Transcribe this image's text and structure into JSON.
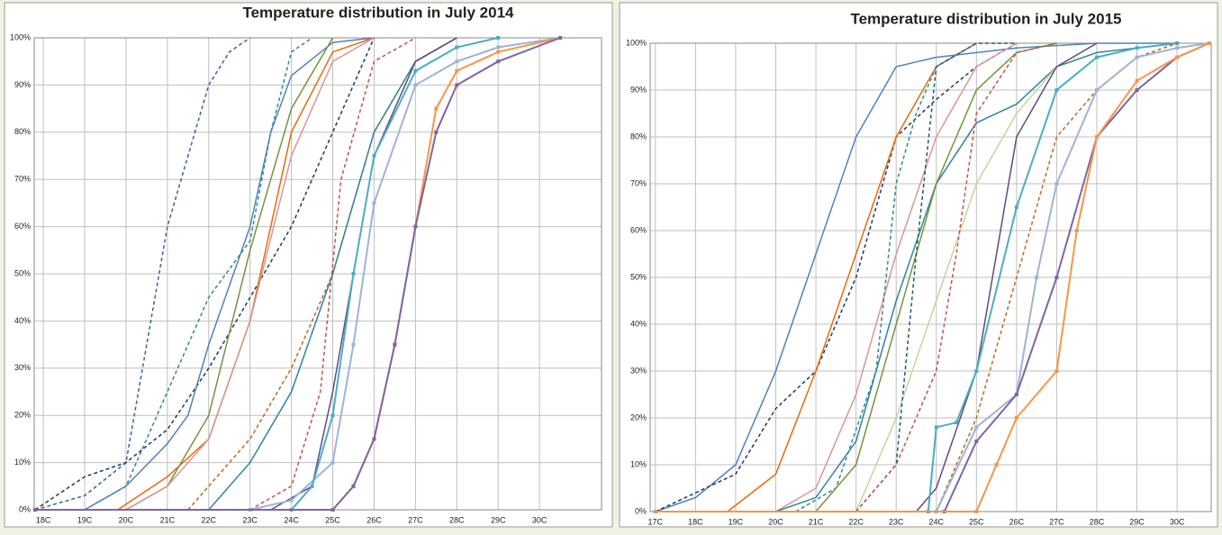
{
  "chart_data": [
    {
      "type": "line",
      "title": "Temperature distribution in July 2014",
      "xlim": [
        17.78,
        31.5
      ],
      "ylim": [
        0,
        100
      ],
      "grid": true,
      "xticks": [
        {
          "value": 18,
          "label": "18C"
        },
        {
          "value": 19,
          "label": "19C"
        },
        {
          "value": 20,
          "label": "20C"
        },
        {
          "value": 21,
          "label": "21C"
        },
        {
          "value": 22,
          "label": "22C"
        },
        {
          "value": 23,
          "label": "23C"
        },
        {
          "value": 24,
          "label": "24C"
        },
        {
          "value": 25,
          "label": "25C"
        },
        {
          "value": 26,
          "label": "26C"
        },
        {
          "value": 27,
          "label": "27C"
        },
        {
          "value": 28,
          "label": "28C"
        },
        {
          "value": 29,
          "label": "29C"
        },
        {
          "value": 30,
          "label": "30C"
        }
      ],
      "yticks": [
        {
          "value": 0,
          "label": "0%"
        },
        {
          "value": 10,
          "label": "10%"
        },
        {
          "value": 20,
          "label": "20%"
        },
        {
          "value": 30,
          "label": "30%"
        },
        {
          "value": 40,
          "label": "40%"
        },
        {
          "value": 50,
          "label": "50%"
        },
        {
          "value": 60,
          "label": "60%"
        },
        {
          "value": 70,
          "label": "70%"
        },
        {
          "value": 80,
          "label": "80%"
        },
        {
          "value": 90,
          "label": "90%"
        },
        {
          "value": 100,
          "label": "100%"
        }
      ],
      "series": [
        {
          "color": "#3a6594",
          "dashed": true,
          "x": [
            17.8,
            19,
            20,
            20.5,
            21,
            21.5,
            22,
            22.5,
            23
          ],
          "values": [
            0,
            3,
            10,
            35,
            60,
            75,
            90,
            97,
            100
          ]
        },
        {
          "color": "#31859c",
          "dashed": true,
          "x": [
            19,
            20,
            21,
            22,
            23,
            23.5,
            24,
            24.5
          ],
          "values": [
            0,
            5,
            25,
            45,
            57,
            80,
            97,
            100
          ]
        },
        {
          "color": "#1f3864",
          "dashed": true,
          "x": [
            17.8,
            19,
            20,
            21,
            22,
            23,
            24,
            25,
            26
          ],
          "values": [
            0,
            7,
            10,
            17,
            30,
            45,
            60,
            80,
            100
          ]
        },
        {
          "color": "#4f81bd",
          "dashed": false,
          "x": [
            19,
            20,
            21,
            21.5,
            22,
            23,
            23.5,
            24,
            25,
            26
          ],
          "values": [
            0,
            5,
            14,
            20,
            35,
            60,
            80,
            92,
            99,
            100
          ]
        },
        {
          "color": "#e46c0a",
          "dashed": false,
          "x": [
            19.8,
            21,
            22,
            23,
            24,
            25,
            26
          ],
          "values": [
            0,
            7,
            15,
            40,
            80,
            97,
            100
          ]
        },
        {
          "color": "#77933c",
          "dashed": false,
          "x": [
            20,
            21,
            22,
            23,
            24,
            25
          ],
          "values": [
            0,
            5,
            20,
            55,
            85,
            100
          ]
        },
        {
          "color": "#d99694",
          "dashed": false,
          "x": [
            20,
            21,
            22,
            23,
            24,
            25,
            26
          ],
          "values": [
            0,
            5,
            15,
            40,
            75,
            95,
            100
          ]
        },
        {
          "color": "#c0661e",
          "dashed": true,
          "x": [
            21.5,
            23,
            24,
            25,
            26,
            27,
            28
          ],
          "values": [
            0,
            15,
            30,
            50,
            80,
            95,
            100
          ]
        },
        {
          "color": "#31849b",
          "dashed": false,
          "x": [
            22,
            23,
            24,
            25,
            26,
            27,
            28
          ],
          "values": [
            0,
            10,
            25,
            50,
            80,
            95,
            100
          ]
        },
        {
          "color": "#c0504d",
          "dashed": true,
          "x": [
            23,
            24,
            24.7,
            25.2,
            26,
            27
          ],
          "values": [
            0,
            5,
            25,
            70,
            95,
            100
          ]
        },
        {
          "color": "#604a7b",
          "dashed": false,
          "x": [
            23.5,
            24.5,
            25,
            25.5,
            26,
            27,
            28
          ],
          "values": [
            0,
            5,
            25,
            50,
            75,
            95,
            100
          ]
        },
        {
          "color": "#9eb3d6",
          "dashed": false,
          "markers": true,
          "x": [
            23,
            24,
            25,
            25.5,
            26,
            27,
            28,
            29,
            30.5
          ],
          "values": [
            0,
            2,
            10,
            35,
            65,
            90,
            95,
            98,
            100
          ]
        },
        {
          "color": "#4bacc6",
          "dashed": false,
          "markers": true,
          "x": [
            24,
            24.5,
            25,
            25.5,
            26,
            27,
            28,
            29
          ],
          "values": [
            0,
            5,
            20,
            50,
            75,
            93,
            98,
            100
          ]
        },
        {
          "color": "#f79646",
          "dashed": false,
          "markers": true,
          "x": [
            17.8,
            25,
            25.5,
            26,
            26.5,
            27,
            27.5,
            28,
            29,
            30.5
          ],
          "values": [
            0,
            0,
            5,
            15,
            35,
            60,
            85,
            93,
            97,
            100
          ]
        },
        {
          "color": "#8064a2",
          "dashed": false,
          "markers": true,
          "x": [
            17.8,
            25,
            25.5,
            26,
            26.5,
            27,
            27.5,
            28,
            29,
            30.5
          ],
          "values": [
            0,
            0,
            5,
            15,
            35,
            60,
            80,
            90,
            95,
            100
          ]
        }
      ]
    },
    {
      "type": "line",
      "title": "Temperature distribution in July 2015",
      "xlim": [
        16.87,
        30.85
      ],
      "ylim": [
        0,
        100
      ],
      "grid": true,
      "xticks": [
        {
          "value": 17,
          "label": "17C"
        },
        {
          "value": 18,
          "label": "18C"
        },
        {
          "value": 19,
          "label": "19C"
        },
        {
          "value": 20,
          "label": "20C"
        },
        {
          "value": 21,
          "label": "21C"
        },
        {
          "value": 22,
          "label": "22C"
        },
        {
          "value": 23,
          "label": "23C"
        },
        {
          "value": 24,
          "label": "24C"
        },
        {
          "value": 25,
          "label": "25C"
        },
        {
          "value": 26,
          "label": "26C"
        },
        {
          "value": 27,
          "label": "27C"
        },
        {
          "value": 28,
          "label": "28C"
        },
        {
          "value": 29,
          "label": "29C"
        },
        {
          "value": 30,
          "label": "30C"
        }
      ],
      "yticks": [
        {
          "value": 0,
          "label": "0%"
        },
        {
          "value": 10,
          "label": "10%"
        },
        {
          "value": 20,
          "label": "20%"
        },
        {
          "value": 30,
          "label": "30%"
        },
        {
          "value": 40,
          "label": "40%"
        },
        {
          "value": 50,
          "label": "50%"
        },
        {
          "value": 60,
          "label": "60%"
        },
        {
          "value": 70,
          "label": "70%"
        },
        {
          "value": 80,
          "label": "80%"
        },
        {
          "value": 90,
          "label": "90%"
        },
        {
          "value": 100,
          "label": "100%"
        }
      ],
      "series": [
        {
          "color": "#4f81bd",
          "dashed": false,
          "x": [
            17,
            18,
            19,
            20,
            21,
            22,
            23,
            24,
            26,
            28,
            30
          ],
          "values": [
            0,
            3,
            10,
            30,
            55,
            80,
            95,
            97,
            99,
            100,
            100
          ]
        },
        {
          "color": "#1f3864",
          "dashed": true,
          "x": [
            17,
            19,
            20,
            21,
            22,
            23,
            24,
            25,
            26
          ],
          "values": [
            0,
            8,
            22,
            30,
            50,
            80,
            88,
            95,
            100
          ]
        },
        {
          "color": "#e46c0a",
          "dashed": false,
          "x": [
            18.8,
            20,
            21,
            22,
            23,
            24,
            25
          ],
          "values": [
            0,
            8,
            30,
            55,
            80,
            95,
            100
          ]
        },
        {
          "color": "#d99694",
          "dashed": false,
          "x": [
            20,
            21,
            22,
            23,
            24,
            25,
            26
          ],
          "values": [
            0,
            5,
            25,
            55,
            80,
            95,
            100
          ]
        },
        {
          "color": "#31859c",
          "dashed": true,
          "x": [
            20.5,
            21.5,
            22.5,
            23,
            23.5,
            24,
            25
          ],
          "values": [
            0,
            5,
            30,
            70,
            85,
            95,
            100
          ]
        },
        {
          "color": "#31849b",
          "dashed": false,
          "x": [
            20,
            21,
            22,
            23,
            24,
            25,
            26,
            27,
            28,
            30
          ],
          "values": [
            0,
            3,
            15,
            45,
            70,
            83,
            87,
            95,
            98,
            100
          ]
        },
        {
          "color": "#77933c",
          "dashed": false,
          "x": [
            21,
            22,
            23,
            24,
            25,
            26,
            27
          ],
          "values": [
            0,
            10,
            40,
            70,
            90,
            98,
            100
          ]
        },
        {
          "color": "#c3d69b",
          "dashed": false,
          "x": [
            22,
            23,
            24,
            25,
            26,
            27,
            28
          ],
          "values": [
            0,
            20,
            45,
            70,
            85,
            95,
            100
          ]
        },
        {
          "color": "#215968",
          "dashed": true,
          "x": [
            22,
            23,
            23.5,
            24,
            25,
            26
          ],
          "values": [
            0,
            10,
            55,
            95,
            100,
            100
          ]
        },
        {
          "color": "#c0504d",
          "dashed": true,
          "x": [
            22,
            23,
            24,
            24.5,
            25,
            26,
            27
          ],
          "values": [
            0,
            10,
            30,
            55,
            85,
            98,
            100
          ]
        },
        {
          "color": "#604a7b",
          "dashed": false,
          "x": [
            23.5,
            24,
            25,
            25.5,
            26,
            27,
            28
          ],
          "values": [
            0,
            5,
            30,
            55,
            80,
            95,
            100
          ]
        },
        {
          "color": "#4bacc6",
          "dashed": false,
          "markers": true,
          "x": [
            17,
            23.8,
            24,
            24.5,
            25,
            26,
            27,
            28,
            29,
            30
          ],
          "values": [
            0,
            0,
            18,
            19,
            30,
            65,
            90,
            97,
            99,
            100
          ]
        },
        {
          "color": "#c0661e",
          "dashed": true,
          "x": [
            24,
            25,
            26,
            27,
            28,
            29,
            30
          ],
          "values": [
            0,
            20,
            50,
            80,
            90,
            97,
            100
          ]
        },
        {
          "color": "#9eb3d6",
          "dashed": false,
          "markers": true,
          "x": [
            17,
            24,
            25,
            26,
            26.5,
            27,
            28,
            29,
            30,
            30.8
          ],
          "values": [
            0,
            0,
            18,
            25,
            50,
            70,
            90,
            97,
            99,
            100
          ]
        },
        {
          "color": "#8064a2",
          "dashed": false,
          "markers": true,
          "x": [
            17,
            24.2,
            25,
            26,
            27,
            28,
            29,
            30,
            30.8
          ],
          "values": [
            0,
            0,
            15,
            25,
            50,
            80,
            90,
            97,
            100
          ]
        },
        {
          "color": "#f79646",
          "dashed": false,
          "markers": true,
          "x": [
            17,
            25,
            25.5,
            26,
            27,
            27.5,
            28,
            29,
            30,
            30.8
          ],
          "values": [
            0,
            0,
            10,
            20,
            30,
            60,
            80,
            92,
            97,
            100
          ]
        }
      ]
    }
  ]
}
